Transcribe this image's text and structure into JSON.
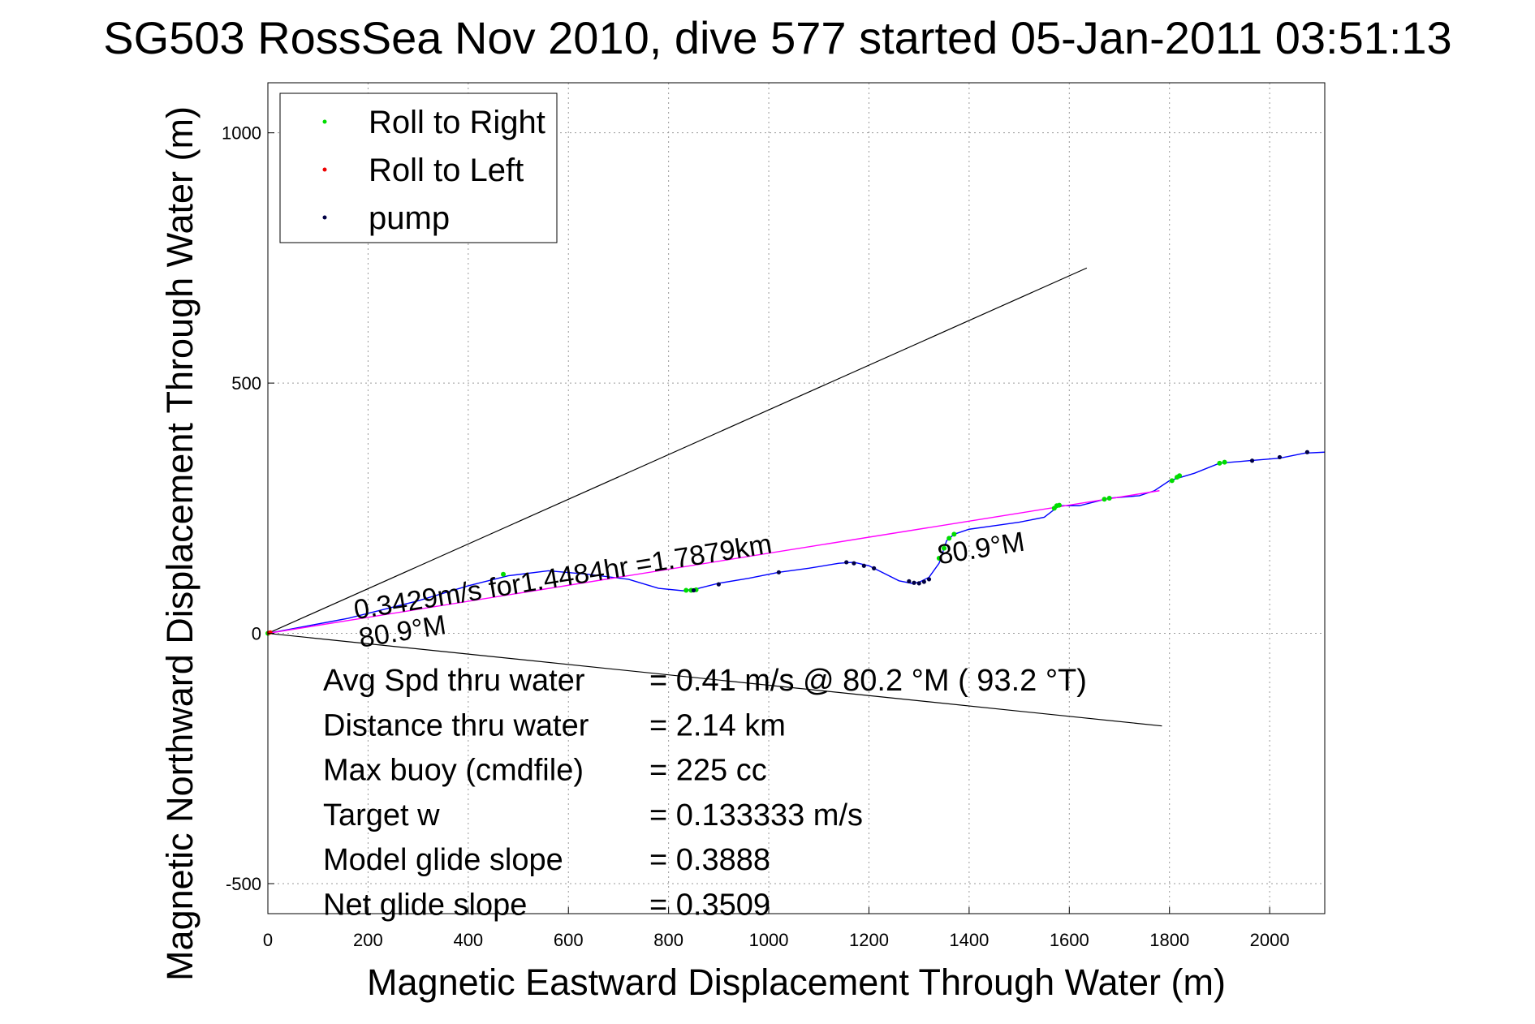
{
  "chart_data": {
    "type": "line",
    "title": "SG503 RossSea Nov 2010, dive 577 started 05-Jan-2011 03:51:13",
    "xlabel": "Magnetic Eastward Displacement Through Water (m)",
    "ylabel": "Magnetic Northward Displacement Through Water (m)",
    "xlim": [
      0,
      2110
    ],
    "ylim": [
      -560,
      1100
    ],
    "xticks": [
      0,
      200,
      400,
      600,
      800,
      1000,
      1200,
      1400,
      1600,
      1800,
      2000
    ],
    "yticks": [
      -500,
      0,
      500,
      1000
    ],
    "grid": true,
    "legend": {
      "placement": "top-left",
      "entries": [
        {
          "label": "Roll to Right",
          "color": "#00dd00"
        },
        {
          "label": "Roll to Left",
          "color": "#ee0000"
        },
        {
          "label": "pump",
          "color": "#000044"
        }
      ]
    },
    "series": [
      {
        "color": "#0000ff",
        "x": [
          0,
          80,
          160,
          220,
          300,
          400,
          480,
          560,
          640,
          720,
          780,
          830,
          860,
          900,
          960,
          1020,
          1080,
          1140,
          1170,
          1200,
          1230,
          1260,
          1285,
          1300,
          1320,
          1340,
          1355,
          1370,
          1400,
          1450,
          1500,
          1550,
          1580,
          1620,
          1680,
          1740,
          1770,
          1800,
          1850,
          1900,
          1960,
          2020,
          2070,
          2110
        ],
        "y": [
          0,
          15,
          30,
          45,
          65,
          95,
          115,
          125,
          118,
          108,
          90,
          85,
          90,
          100,
          110,
          122,
          130,
          140,
          142,
          135,
          120,
          105,
          100,
          102,
          112,
          140,
          185,
          198,
          208,
          215,
          222,
          232,
          255,
          255,
          270,
          275,
          285,
          305,
          320,
          340,
          345,
          350,
          360,
          362
        ]
      },
      {
        "color": "#ff00ff",
        "x": [
          0,
          1780
        ],
        "y": [
          0,
          285
        ]
      }
    ],
    "roll_right_points": {
      "color": "#00dd00",
      "x": [
        0,
        470,
        835,
        845,
        855,
        1340,
        1350,
        1360,
        1370,
        1570,
        1575,
        1580,
        1670,
        1680,
        1805,
        1815,
        1820,
        1900,
        1910
      ],
      "y": [
        0,
        118,
        86,
        86,
        87,
        150,
        170,
        190,
        198,
        250,
        255,
        256,
        268,
        270,
        305,
        312,
        315,
        340,
        342
      ]
    },
    "roll_left_points": {
      "color": "#ee0000",
      "x": [
        2,
        5
      ],
      "y": [
        1,
        2
      ]
    },
    "pump_points": {
      "color": "#000044",
      "x": [
        850,
        900,
        1020,
        1155,
        1170,
        1190,
        1210,
        1280,
        1290,
        1300,
        1310,
        1320,
        1965,
        2020,
        2075
      ],
      "y": [
        86,
        98,
        122,
        142,
        140,
        135,
        130,
        104,
        101,
        100,
        103,
        108,
        345,
        352,
        362
      ]
    },
    "guide_lines": [
      {
        "x": [
          0,
          1635
        ],
        "y": [
          0,
          730
        ],
        "color": "#000000"
      },
      {
        "x": [
          0,
          1785
        ],
        "y": [
          0,
          -185
        ],
        "color": "#000000"
      }
    ],
    "annotations": [
      {
        "text": "0.3429m/s for1.4484hr =1.7879km",
        "x": 175,
        "y": 28,
        "angle": 9.1
      },
      {
        "text": "80.9°M",
        "x": 185,
        "y": -28,
        "angle": 9.1
      },
      {
        "text": "80.9°M",
        "x": 1340,
        "y": 138,
        "angle": 9.1
      }
    ],
    "stats": [
      {
        "label": "Avg Spd thru water",
        "value": "=  0.41 m/s @  80.2 °M ( 93.2 °T)"
      },
      {
        "label": "Distance thru water",
        "value": "=  2.14 km"
      },
      {
        "label": "Max buoy (cmdfile)",
        "value": "= 225 cc"
      },
      {
        "label": "Target w",
        "value": "= 0.133333 m/s"
      },
      {
        "label": "Model glide slope",
        "value": "= 0.3888"
      },
      {
        "label": "Net glide slope",
        "value": "= 0.3509"
      }
    ]
  }
}
